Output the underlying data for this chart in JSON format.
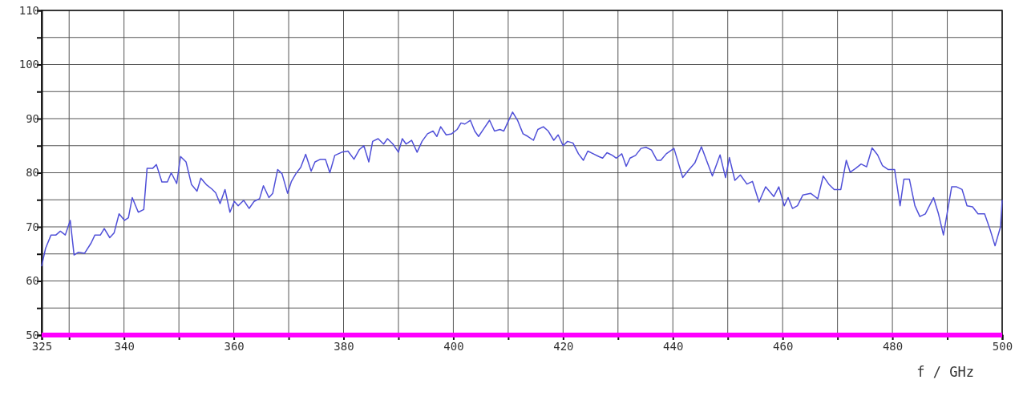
{
  "chart_data": {
    "type": "line",
    "xlabel": "f / GHz",
    "xlim": [
      325,
      500
    ],
    "xticks": [
      325,
      {
        "value": 330,
        "label": null
      },
      340,
      {
        "value": 350,
        "label": null
      },
      360,
      {
        "value": 370,
        "label": null
      },
      380,
      {
        "value": 390,
        "label": null
      },
      400,
      {
        "value": 410,
        "label": null
      },
      420,
      {
        "value": 430,
        "label": null
      },
      440,
      {
        "value": 450,
        "label": null
      },
      460,
      {
        "value": 470,
        "label": null
      },
      480,
      {
        "value": 490,
        "label": null
      },
      500
    ],
    "ylim": [
      50,
      110
    ],
    "yticks": [
      50,
      {
        "value": 55,
        "label": null
      },
      60,
      {
        "value": 65,
        "label": null
      },
      70,
      {
        "value": 75,
        "label": null
      },
      80,
      {
        "value": 85,
        "label": null
      },
      90,
      {
        "value": 95,
        "label": null
      },
      100,
      {
        "value": 105,
        "label": null
      },
      110
    ],
    "grid": true,
    "marker": "none",
    "line_style": "solid",
    "ref_lines": [
      {
        "axis": "y",
        "value": 50,
        "color": "#ff00ff"
      }
    ],
    "series": [
      {
        "color": "#5050d8",
        "x": [
          325,
          325.7,
          326.7,
          327.6,
          328.4,
          329.3,
          330.2,
          330.9,
          331.7,
          332.8,
          334,
          334.7,
          335.7,
          336.4,
          337.4,
          338.2,
          339.1,
          340.1,
          340.8,
          341.5,
          342.6,
          343.6,
          344.2,
          345.2,
          345.9,
          346.9,
          347.9,
          348.6,
          349.6,
          350.3,
          351.3,
          352.3,
          353.3,
          354,
          355,
          356,
          356.7,
          357.5,
          358.4,
          359.3,
          360.1,
          360.8,
          361.8,
          362.8,
          363.7,
          364.7,
          365.4,
          366.4,
          367.1,
          368,
          368.8,
          369.8,
          370.5,
          371.3,
          372.2,
          373.1,
          374.1,
          374.8,
          375.8,
          376.7,
          377.5,
          378.4,
          379.7,
          380.8,
          381.9,
          382.9,
          383.7,
          384.6,
          385.3,
          386.3,
          387.3,
          388,
          389,
          390,
          390.7,
          391.4,
          392.4,
          393.4,
          394.3,
          395.3,
          396.3,
          397,
          397.7,
          398.7,
          399.7,
          400.7,
          401.4,
          402.1,
          403.1,
          403.9,
          404.6,
          405.6,
          406.6,
          407.5,
          408.5,
          409.2,
          410,
          410.8,
          411.7,
          412.7,
          413.6,
          414.6,
          415.4,
          416.4,
          417.3,
          418.3,
          419.1,
          420,
          420.8,
          421.8,
          422.8,
          423.7,
          424.5,
          425.5,
          426.5,
          427.2,
          428,
          429,
          429.7,
          430.7,
          431.5,
          432.2,
          433.2,
          434.2,
          435.1,
          436.1,
          437.1,
          437.8,
          438.8,
          440.2,
          441.8,
          442.8,
          444,
          445.2,
          446.2,
          447.2,
          448.6,
          449.6,
          450.3,
          451.3,
          452.3,
          453.5,
          454.5,
          455.7,
          456.9,
          458.4,
          459.3,
          460.3,
          461,
          461.8,
          462.7,
          463.7,
          465.1,
          466.4,
          467.4,
          468.4,
          469.4,
          470.6,
          471.6,
          472.3,
          473.3,
          474.3,
          475.3,
          476.3,
          477.3,
          478.2,
          479.2,
          480.4,
          481.4,
          482.1,
          483.1,
          484.1,
          485,
          486,
          487.5,
          488.4,
          489.3,
          490.8,
          491.7,
          492.7,
          493.6,
          494.6,
          495.6,
          496.8,
          497.8,
          498.7,
          499.7,
          500
        ],
        "values": [
          62.8,
          66,
          68.5,
          68.5,
          69.2,
          68.5,
          71.2,
          64.8,
          65.3,
          65.1,
          67,
          68.5,
          68.5,
          69.7,
          68,
          68.9,
          72.4,
          71.2,
          71.7,
          75.4,
          72.7,
          73.2,
          80.8,
          80.8,
          81.5,
          78.3,
          78.3,
          80,
          78,
          83,
          82,
          77.8,
          76.6,
          79,
          77.8,
          77,
          76.3,
          74.3,
          76.9,
          72.7,
          74.7,
          73.9,
          74.9,
          73.4,
          74.7,
          75.2,
          77.6,
          75.4,
          76.2,
          80.6,
          79.8,
          76.2,
          78.4,
          79.8,
          81,
          83.4,
          80.3,
          82,
          82.5,
          82.5,
          80,
          83.2,
          83.8,
          84,
          82.5,
          84.3,
          85,
          82,
          85.8,
          86.3,
          85.3,
          86.3,
          85.3,
          83.8,
          86.3,
          85.3,
          86,
          83.8,
          85.8,
          87.2,
          87.7,
          86.7,
          88.5,
          87,
          87.2,
          88,
          89.2,
          89,
          89.7,
          87.7,
          86.7,
          88.2,
          89.7,
          87.7,
          88,
          87.7,
          89.5,
          91.2,
          89.7,
          87.2,
          86.7,
          86,
          88,
          88.5,
          87.7,
          86,
          87,
          85,
          85.8,
          85.5,
          83.5,
          82.3,
          84,
          83.5,
          83,
          82.7,
          83.7,
          83.2,
          82.7,
          83.5,
          81.2,
          82.7,
          83.2,
          84.5,
          84.7,
          84.2,
          82.3,
          82.3,
          83.5,
          84.5,
          79.1,
          80.4,
          81.8,
          84.8,
          82.1,
          79.4,
          83.3,
          79.1,
          82.8,
          78.6,
          79.6,
          77.9,
          78.4,
          74.6,
          77.4,
          75.6,
          77.4,
          73.9,
          75.4,
          73.4,
          73.9,
          75.9,
          76.2,
          75.2,
          79.4,
          77.9,
          76.9,
          76.9,
          82.3,
          80.1,
          80.8,
          81.6,
          81.1,
          84.6,
          83.3,
          81.3,
          80.6,
          80.6,
          73.9,
          78.8,
          78.8,
          73.9,
          71.9,
          72.4,
          75.4,
          72.4,
          68.5,
          77.4,
          77.4,
          76.9,
          73.9,
          73.7,
          72.4,
          72.4,
          69.5,
          66.5,
          70,
          74.9
        ]
      }
    ]
  }
}
